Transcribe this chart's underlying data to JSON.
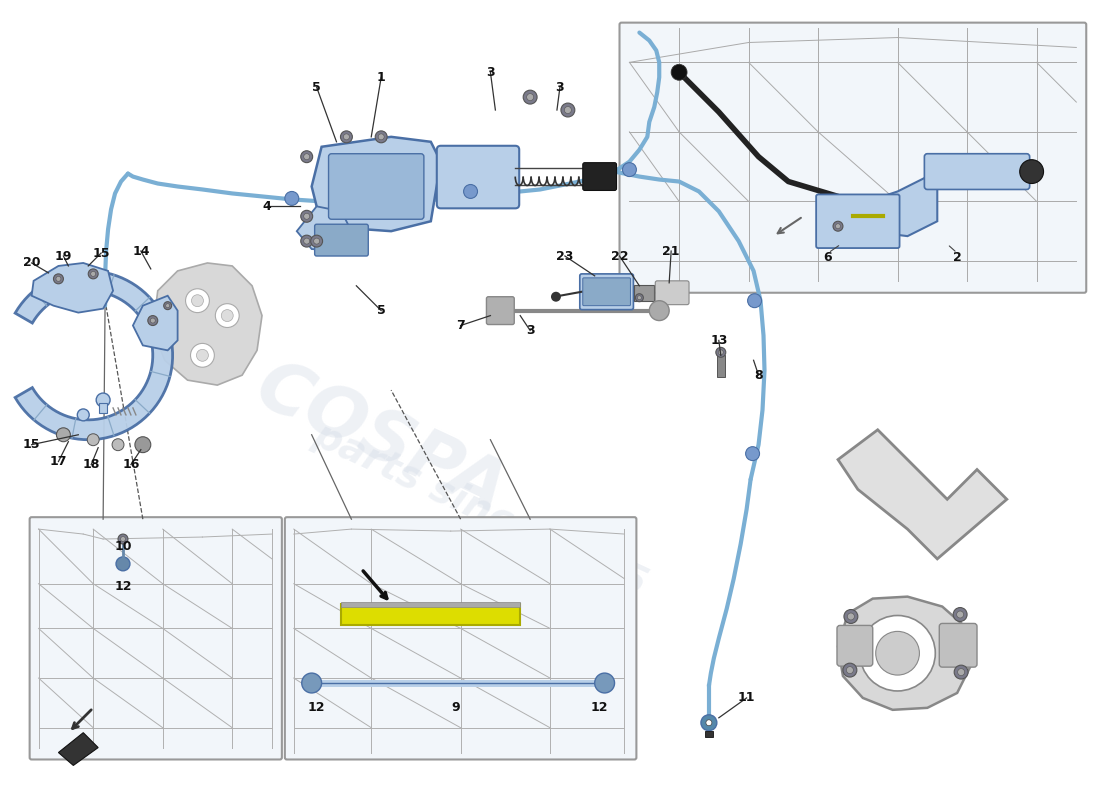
{
  "bg_color": "#ffffff",
  "cable_color": "#7aafd4",
  "cable_lw": 2.5,
  "part_fill": "#b8cfe8",
  "part_edge": "#4a6fa5",
  "gray_fill": "#d8d8d8",
  "gray_edge": "#888888",
  "dark_gray": "#555555",
  "label_color": "#111111",
  "inset_bg": "#f2f6fa",
  "inset_border": "#999999",
  "watermark_color": "#c8d4e4",
  "label_fs": 9,
  "bolt_color": "#7a7a8a",
  "line_color": "#444444"
}
